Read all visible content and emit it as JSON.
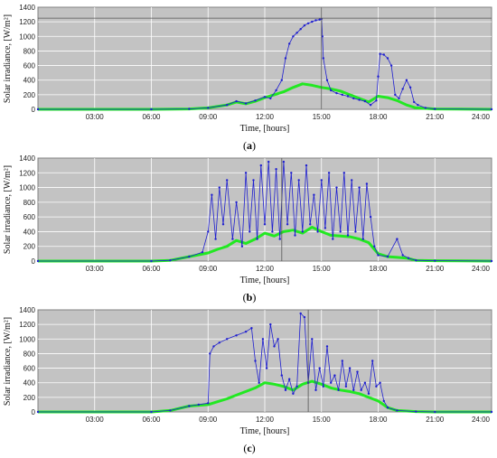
{
  "figure": {
    "panels": [
      {
        "id": "a",
        "label_open": "(",
        "label_letter": "a",
        "label_close": ")",
        "chart_data": {
          "type": "line",
          "xlabel": "Time, [hours]",
          "ylabel": "Solar irradiance, [W/m²]",
          "xlim": [
            0,
            24
          ],
          "ylim": [
            0,
            1400
          ],
          "xticks": [
            "03:00",
            "06:00",
            "09:00",
            "12:00",
            "15:00",
            "18:00",
            "21:00",
            "24:00"
          ],
          "yticks": [
            0,
            200,
            400,
            600,
            800,
            1000,
            1200,
            1400
          ],
          "grid": true,
          "cursor_x": 15.0,
          "cursor_y": 1250,
          "series": [
            {
              "color": "#1f1fd0",
              "markers": true,
              "x": [
                0,
                6,
                8,
                9,
                10,
                10.5,
                11,
                11.5,
                12,
                12.3,
                12.6,
                12.9,
                13.1,
                13.3,
                13.5,
                13.7,
                13.9,
                14.1,
                14.3,
                14.5,
                14.7,
                14.9,
                15.0,
                15.05,
                15.1,
                15.3,
                15.5,
                15.8,
                16.1,
                16.4,
                16.7,
                17.0,
                17.3,
                17.6,
                17.9,
                18.0,
                18.1,
                18.3,
                18.5,
                18.7,
                18.9,
                19.1,
                19.3,
                19.5,
                19.7,
                19.9,
                20.1,
                20.5,
                21,
                24
              ],
              "y": [
                0,
                0,
                5,
                20,
                60,
                110,
                80,
                120,
                170,
                150,
                260,
                400,
                700,
                900,
                1000,
                1050,
                1100,
                1150,
                1180,
                1200,
                1220,
                1230,
                1240,
                1000,
                700,
                400,
                260,
                220,
                200,
                180,
                150,
                130,
                110,
                60,
                120,
                450,
                760,
                750,
                700,
                600,
                200,
                150,
                280,
                400,
                300,
                100,
                60,
                20,
                5,
                0
              ]
            },
            {
              "color": "#22e822",
              "markers": false,
              "x": [
                0,
                6,
                8,
                9,
                10,
                10.5,
                11,
                11.5,
                12,
                12.5,
                13,
                13.5,
                14,
                14.5,
                15,
                15.5,
                16,
                16.5,
                17,
                17.5,
                18,
                18.5,
                19,
                19.5,
                20,
                21,
                24
              ],
              "y": [
                0,
                0,
                5,
                20,
                60,
                100,
                75,
                110,
                160,
                200,
                240,
                300,
                350,
                330,
                300,
                280,
                250,
                200,
                150,
                100,
                180,
                160,
                120,
                60,
                20,
                5,
                0
              ]
            }
          ]
        }
      },
      {
        "id": "b",
        "label_open": "(",
        "label_letter": "b",
        "label_close": ")",
        "chart_data": {
          "type": "line",
          "xlabel": "Time, [hours]",
          "ylabel": "Solar irradiance, [W/m²]",
          "xlim": [
            0,
            24
          ],
          "ylim": [
            0,
            1400
          ],
          "xticks": [
            "03:00",
            "06:00",
            "09:00",
            "12:00",
            "15:00",
            "18:00",
            "21:00",
            "24:00"
          ],
          "yticks": [
            0,
            200,
            400,
            600,
            800,
            1000,
            1200,
            1400
          ],
          "grid": true,
          "cursor_x": 12.9,
          "cursor_y": null,
          "series": [
            {
              "color": "#1f1fd0",
              "markers": true,
              "x": [
                0,
                6,
                7,
                8,
                8.7,
                9.0,
                9.2,
                9.4,
                9.6,
                9.8,
                10.0,
                10.3,
                10.5,
                10.8,
                11.0,
                11.2,
                11.4,
                11.6,
                11.8,
                12.0,
                12.2,
                12.4,
                12.6,
                12.8,
                13.0,
                13.2,
                13.4,
                13.6,
                13.8,
                14.0,
                14.2,
                14.4,
                14.6,
                14.8,
                15.0,
                15.2,
                15.4,
                15.6,
                15.8,
                16.0,
                16.2,
                16.4,
                16.6,
                16.8,
                17.0,
                17.2,
                17.4,
                17.6,
                17.8,
                18.0,
                18.5,
                19.0,
                19.3,
                19.6,
                20,
                21,
                24
              ],
              "y": [
                0,
                0,
                10,
                60,
                120,
                400,
                900,
                300,
                1000,
                500,
                1100,
                300,
                800,
                200,
                1200,
                400,
                1100,
                300,
                1300,
                500,
                1350,
                400,
                1250,
                300,
                1350,
                500,
                1200,
                350,
                1100,
                400,
                1300,
                500,
                900,
                400,
                1100,
                450,
                1200,
                300,
                1000,
                400,
                1200,
                350,
                1100,
                400,
                1000,
                300,
                1050,
                600,
                200,
                80,
                60,
                300,
                80,
                40,
                10,
                5,
                0
              ]
            },
            {
              "color": "#22e822",
              "markers": false,
              "x": [
                0,
                6,
                7,
                8,
                9,
                9.5,
                10,
                10.5,
                11,
                11.5,
                12,
                12.5,
                13,
                13.5,
                14,
                14.5,
                15,
                15.5,
                16,
                16.5,
                17,
                17.5,
                18,
                18.5,
                19,
                19.5,
                20,
                21,
                24
              ],
              "y": [
                0,
                0,
                10,
                60,
                110,
                160,
                200,
                280,
                240,
                300,
                380,
                340,
                400,
                420,
                380,
                460,
                400,
                350,
                340,
                330,
                300,
                250,
                100,
                60,
                50,
                40,
                10,
                5,
                0
              ]
            }
          ]
        }
      },
      {
        "id": "c",
        "label_open": "(",
        "label_letter": "c",
        "label_close": ")",
        "chart_data": {
          "type": "line",
          "xlabel": "Time, [hours]",
          "ylabel": "Solar irradiance, [W/m²]",
          "xlim": [
            0,
            24
          ],
          "ylim": [
            0,
            1400
          ],
          "xticks": [
            "03:00",
            "06:00",
            "09:00",
            "12:00",
            "15:00",
            "18:00",
            "21:00",
            "24:00"
          ],
          "yticks": [
            0,
            200,
            400,
            600,
            800,
            1000,
            1200,
            1400
          ],
          "grid": true,
          "cursor_x": 14.3,
          "cursor_y": null,
          "series": [
            {
              "color": "#1f1fd0",
              "markers": true,
              "x": [
                0,
                6,
                7,
                8,
                8.5,
                9.0,
                9.1,
                9.3,
                9.6,
                10.0,
                10.5,
                11.0,
                11.3,
                11.5,
                11.7,
                11.9,
                12.1,
                12.3,
                12.5,
                12.7,
                12.9,
                13.1,
                13.3,
                13.5,
                13.7,
                13.9,
                14.1,
                14.3,
                14.5,
                14.7,
                14.9,
                15.1,
                15.3,
                15.5,
                15.7,
                15.9,
                16.1,
                16.3,
                16.5,
                16.7,
                16.9,
                17.1,
                17.3,
                17.5,
                17.7,
                17.9,
                18.1,
                18.3,
                18.5,
                19,
                20,
                21,
                24
              ],
              "y": [
                0,
                0,
                20,
                80,
                100,
                120,
                800,
                900,
                950,
                1000,
                1050,
                1100,
                1150,
                700,
                400,
                1000,
                600,
                1200,
                900,
                1000,
                500,
                300,
                450,
                250,
                350,
                1350,
                1300,
                400,
                1000,
                300,
                600,
                350,
                900,
                400,
                500,
                300,
                700,
                350,
                600,
                300,
                550,
                300,
                400,
                250,
                700,
                350,
                400,
                150,
                60,
                20,
                5,
                0,
                0
              ]
            },
            {
              "color": "#22e822",
              "markers": false,
              "x": [
                0,
                6,
                7,
                8,
                9,
                9.5,
                10,
                10.5,
                11,
                11.5,
                12,
                12.5,
                13,
                13.5,
                14,
                14.5,
                15,
                15.5,
                16,
                16.5,
                17,
                17.5,
                18,
                18.5,
                19,
                20,
                21,
                24
              ],
              "y": [
                0,
                0,
                20,
                80,
                100,
                140,
                180,
                230,
                280,
                330,
                400,
                380,
                350,
                300,
                380,
                420,
                380,
                330,
                300,
                280,
                250,
                200,
                150,
                60,
                20,
                5,
                0,
                0
              ]
            }
          ]
        }
      }
    ]
  }
}
